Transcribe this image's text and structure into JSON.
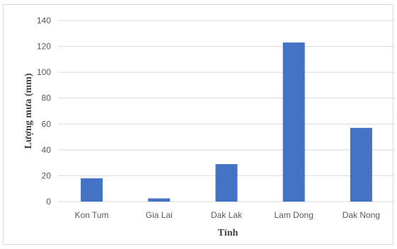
{
  "chart_data": {
    "type": "bar",
    "title": "",
    "xlabel": "Tỉnh",
    "ylabel": "Lượng mưa (mm)",
    "categories": [
      "Kon Tum",
      "Gia Lai",
      "Dak Lak",
      "Lam Dong",
      "Dak Nong"
    ],
    "values": [
      18,
      2.5,
      29,
      123,
      57
    ],
    "ylim": [
      0,
      140
    ],
    "yticks": [
      0,
      20,
      40,
      60,
      80,
      100,
      120,
      140
    ],
    "grid": true,
    "legend": "none",
    "bar_color": "#4472c4",
    "grid_color": "#d9d9d9"
  }
}
